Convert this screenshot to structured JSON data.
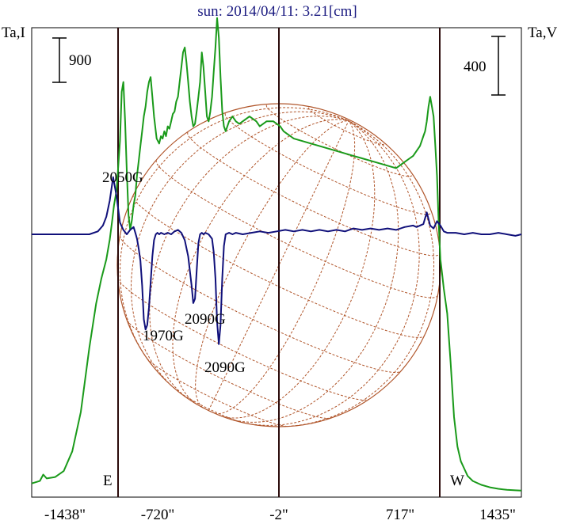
{
  "header": {
    "title": "sun: 2014/04/11: 3.21[cm]"
  },
  "axes": {
    "left_label": "Ta,I",
    "right_label": "Ta,V",
    "left_scalebar_label": "900",
    "right_scalebar_label": "400",
    "x_ticks": [
      "-1438\"",
      "-720\"",
      "-2\"",
      "717\"",
      "1435\""
    ],
    "limb_east_label": "E",
    "limb_west_label": "W"
  },
  "annotations": {
    "a1": "2050G",
    "a2": "1970G",
    "a3": "2090G",
    "a4": "2090G"
  },
  "colors": {
    "title": "#1a1a80",
    "intensity": "#1a9a1a",
    "polarization": "#10107a",
    "disk": "#b0552a",
    "frame": "#000000",
    "limb_lines": "#2a0a0a"
  },
  "chart_data": {
    "type": "line",
    "title": "sun: 2014/04/11: 3.21[cm]",
    "xlabel": "",
    "ylabel": "Ta,I",
    "y2label": "Ta,V",
    "xlim": [
      -1438,
      1435
    ],
    "x_unit": "arcsec",
    "vertical_markers": [
      -960,
      -2,
      955
    ],
    "scale_bars": {
      "I": 900,
      "V": 400
    },
    "series": [
      {
        "name": "I",
        "axis": "left",
        "x": [
          -1438,
          -1390,
          -1370,
          -1350,
          -1300,
          -1250,
          -1200,
          -1150,
          -1100,
          -1060,
          -1030,
          -1000,
          -980,
          -965,
          -955,
          -940,
          -930,
          -920,
          -910,
          -900,
          -890,
          -880,
          -870,
          -860,
          -850,
          -840,
          -830,
          -820,
          -810,
          -800,
          -790,
          -780,
          -770,
          -760,
          -750,
          -740,
          -730,
          -720,
          -705,
          -690,
          -680,
          -670,
          -660,
          -650,
          -640,
          -630,
          -620,
          -610,
          -600,
          -590,
          -580,
          -570,
          -560,
          -550,
          -540,
          -530,
          -520,
          -510,
          -500,
          -490,
          -480,
          -470,
          -460,
          -450,
          -440,
          -430,
          -420,
          -410,
          -400,
          -390,
          -380,
          -370,
          -360,
          -350,
          -340,
          -330,
          -320,
          -310,
          -300,
          -280,
          -260,
          -240,
          -220,
          -200,
          -180,
          -160,
          -140,
          -120,
          -100,
          -80,
          -60,
          -40,
          -20,
          0,
          20,
          40,
          60,
          80,
          100,
          150,
          200,
          250,
          300,
          350,
          400,
          450,
          500,
          550,
          600,
          650,
          700,
          720,
          740,
          760,
          780,
          800,
          820,
          840,
          850,
          860,
          870,
          880,
          890,
          900,
          910,
          920,
          930,
          940,
          950,
          960,
          970,
          980,
          1000,
          1020,
          1040,
          1060,
          1080,
          1100,
          1120,
          1150,
          1200,
          1250,
          1300,
          1350,
          1400,
          1435
        ],
        "y": [
          150,
          200,
          330,
          250,
          280,
          400,
          800,
          1600,
          2900,
          3800,
          4300,
          4700,
          5100,
          5500,
          5800,
          6100,
          6600,
          7100,
          8100,
          8300,
          7500,
          6500,
          5600,
          5300,
          5500,
          5800,
          6000,
          6400,
          6700,
          7000,
          7300,
          7600,
          7800,
          8100,
          8300,
          8400,
          8000,
          7600,
          7150,
          7050,
          7200,
          7150,
          7300,
          7200,
          7400,
          7350,
          7500,
          7650,
          7700,
          7900,
          8000,
          8300,
          8600,
          8900,
          9000,
          8700,
          8300,
          7900,
          7600,
          7400,
          7450,
          7700,
          8000,
          8300,
          8900,
          8600,
          8100,
          7600,
          7500,
          7700,
          8000,
          8500,
          9000,
          9600,
          9200,
          8400,
          7700,
          7400,
          7300,
          7500,
          7600,
          7500,
          7450,
          7500,
          7550,
          7600,
          7550,
          7500,
          7400,
          7450,
          7500,
          7500,
          7500,
          7450,
          7400,
          7300,
          7250,
          7200,
          7150,
          7100,
          7050,
          7000,
          6950,
          6900,
          6850,
          6800,
          6750,
          6700,
          6650,
          6600,
          6550,
          6600,
          6650,
          6700,
          6750,
          6800,
          6900,
          7000,
          7100,
          7200,
          7300,
          7500,
          7800,
          8000,
          7800,
          7600,
          7000,
          6400,
          5400,
          4700,
          4400,
          4100,
          3600,
          2600,
          1500,
          900,
          600,
          450,
          300,
          200,
          120,
          70,
          40,
          20,
          10,
          5
        ]
      },
      {
        "name": "V",
        "axis": "right",
        "x": [
          -1438,
          -1400,
          -1300,
          -1200,
          -1100,
          -1050,
          -1020,
          -1000,
          -980,
          -960,
          -940,
          -920,
          -900,
          -880,
          -860,
          -840,
          -830,
          -820,
          -810,
          -800,
          -790,
          -780,
          -770,
          -760,
          -750,
          -740,
          -730,
          -720,
          -710,
          -700,
          -690,
          -680,
          -660,
          -640,
          -620,
          -600,
          -580,
          -560,
          -540,
          -520,
          -500,
          -490,
          -480,
          -470,
          -460,
          -450,
          -440,
          -430,
          -420,
          -400,
          -380,
          -370,
          -360,
          -350,
          -340,
          -330,
          -320,
          -310,
          -300,
          -280,
          -260,
          -240,
          -200,
          -150,
          -100,
          -50,
          0,
          50,
          100,
          150,
          200,
          250,
          300,
          350,
          400,
          450,
          500,
          550,
          600,
          650,
          700,
          750,
          800,
          820,
          840,
          860,
          880,
          900,
          920,
          940,
          960,
          980,
          1000,
          1050,
          1100,
          1150,
          1200,
          1250,
          1300,
          1350,
          1400,
          1435
        ],
        "y": [
          0,
          0,
          0,
          0,
          0,
          20,
          60,
          120,
          230,
          390,
          260,
          80,
          30,
          0,
          30,
          50,
          10,
          -30,
          -100,
          -180,
          -350,
          -580,
          -650,
          -620,
          -500,
          -330,
          -150,
          -40,
          0,
          10,
          0,
          10,
          0,
          10,
          0,
          20,
          30,
          10,
          -40,
          -150,
          -350,
          -470,
          -440,
          -250,
          -60,
          0,
          10,
          0,
          10,
          0,
          -30,
          -120,
          -300,
          -600,
          -750,
          -620,
          -300,
          -80,
          0,
          10,
          0,
          10,
          0,
          10,
          20,
          10,
          20,
          30,
          20,
          30,
          20,
          30,
          20,
          30,
          20,
          40,
          30,
          40,
          30,
          40,
          30,
          50,
          60,
          50,
          60,
          70,
          150,
          60,
          40,
          90,
          60,
          20,
          10,
          10,
          0,
          10,
          0,
          0,
          10,
          0,
          -10,
          0
        ]
      }
    ],
    "annotations": [
      {
        "text": "2050G",
        "x": -930,
        "series": "V"
      },
      {
        "text": "1970G",
        "x": -760,
        "series": "V"
      },
      {
        "text": "2090G",
        "x": -470,
        "series": "V"
      },
      {
        "text": "2090G",
        "x": -350,
        "series": "V"
      }
    ]
  }
}
